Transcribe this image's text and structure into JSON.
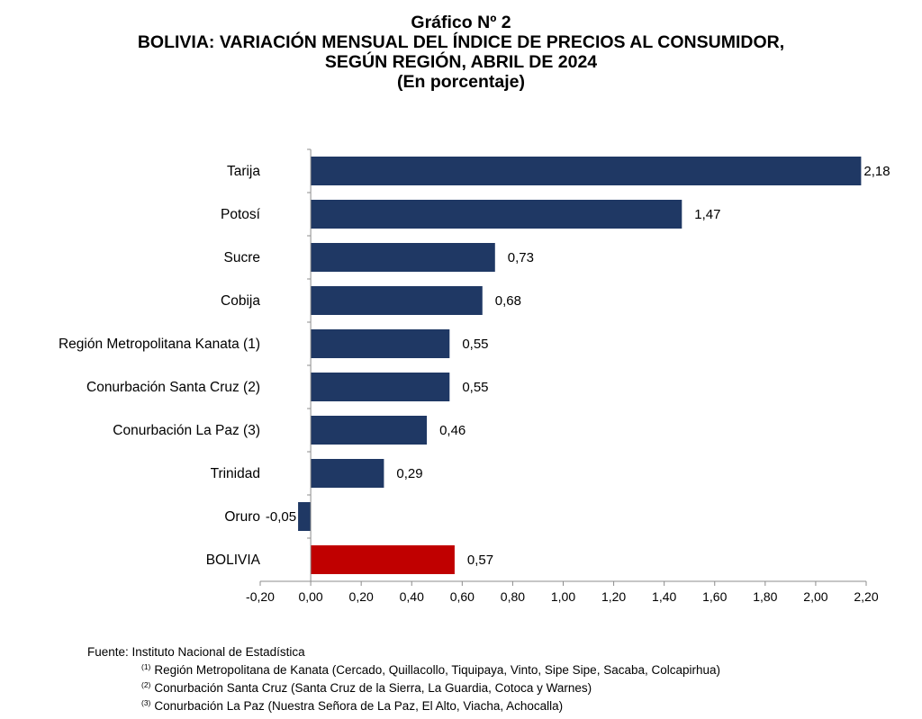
{
  "header": {
    "line1": "Gráfico Nº 2",
    "line2": "BOLIVIA: VARIACIÓN MENSUAL DEL ÍNDICE DE PRECIOS AL CONSUMIDOR,",
    "line3": "SEGÚN REGIÓN, ABRIL DE 2024",
    "line4": "(En porcentaje)"
  },
  "chart_data": {
    "type": "bar",
    "orientation": "horizontal",
    "title": "BOLIVIA: VARIACIÓN MENSUAL DEL ÍNDICE DE PRECIOS AL CONSUMIDOR, SEGÚN REGIÓN, ABRIL DE 2024",
    "subtitle": "(En porcentaje)",
    "categories": [
      "Tarija",
      "Potosí",
      "Sucre",
      "Cobija",
      "Región Metropolitana Kanata (1)",
      "Conurbación Santa Cruz (2)",
      "Conurbación La Paz (3)",
      "Trinidad",
      "Oruro",
      "BOLIVIA"
    ],
    "values": [
      2.18,
      1.47,
      0.73,
      0.68,
      0.55,
      0.55,
      0.46,
      0.29,
      -0.05,
      0.57
    ],
    "value_labels": [
      "2,18",
      "1,47",
      "0,73",
      "0,68",
      "0,55",
      "0,55",
      "0,46",
      "0,29",
      "-0,05",
      "0,57"
    ],
    "xlim": [
      -0.2,
      2.2
    ],
    "xticks": [
      "-0,20",
      "0,00",
      "0,20",
      "0,40",
      "0,60",
      "0,80",
      "1,00",
      "1,20",
      "1,40",
      "1,60",
      "1,80",
      "2,00",
      "2,20"
    ],
    "bar_color": "#1f3864",
    "highlight_color": "#c00000",
    "highlight_category": "BOLIVIA",
    "grid": false,
    "legend": "none"
  },
  "footer": {
    "source": "Fuente: Instituto Nacional de Estadística",
    "notes": [
      {
        "mark": "(1)",
        "text": "Región Metropolitana de Kanata (Cercado, Quillacollo, Tiquipaya, Vinto, Sipe Sipe, Sacaba, Colcapirhua)"
      },
      {
        "mark": "(2)",
        "text": "Conurbación Santa Cruz (Santa Cruz de la Sierra, La Guardia, Cotoca y Warnes)"
      },
      {
        "mark": "(3)",
        "text": "Conurbación La Paz (Nuestra Señora de La Paz, El Alto, Viacha, Achocalla)"
      }
    ]
  }
}
